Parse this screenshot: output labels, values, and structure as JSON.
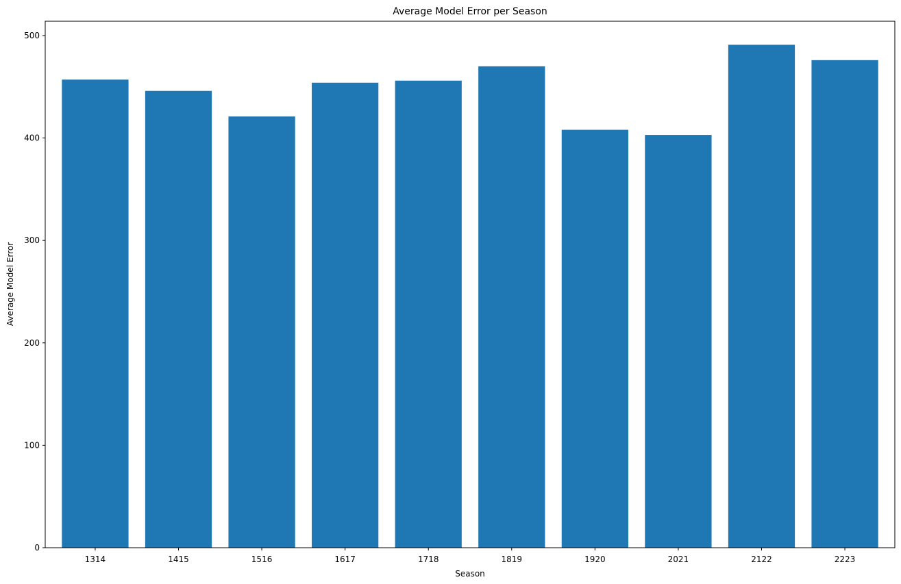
{
  "chart_data": {
    "type": "bar",
    "title": "Average Model Error per Season",
    "xlabel": "Season",
    "ylabel": "Average Model Error",
    "categories": [
      "1314",
      "1415",
      "1516",
      "1617",
      "1718",
      "1819",
      "1920",
      "2021",
      "2122",
      "2223"
    ],
    "values": [
      457,
      446,
      421,
      454,
      456,
      470,
      408,
      403,
      491,
      476
    ],
    "ylim": [
      0,
      514
    ],
    "yticks": [
      0,
      100,
      200,
      300,
      400,
      500
    ],
    "grid": false,
    "legend": "none",
    "bar_color": "#1f77b4"
  }
}
